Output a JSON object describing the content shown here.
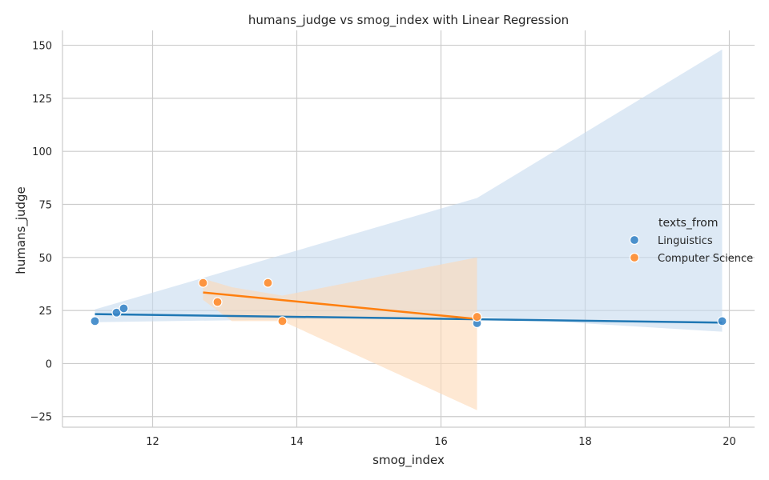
{
  "chart_data": {
    "type": "scatter",
    "title": "humans_judge vs smog_index with Linear Regression",
    "xlabel": "smog_index",
    "ylabel": "humans_judge",
    "xlim": [
      10.75,
      20.35
    ],
    "ylim": [
      -30,
      157
    ],
    "x_ticks": [
      12,
      14,
      16,
      18,
      20
    ],
    "y_ticks": [
      -25,
      0,
      25,
      50,
      75,
      100,
      125,
      150
    ],
    "grid": true,
    "legend": {
      "title": "texts_from",
      "placement": "center-right"
    },
    "series": [
      {
        "name": "Linguistics",
        "color": "#3a86c8",
        "line_color": "#1f77b4",
        "band_color": "#c6dbef",
        "points": [
          {
            "x": 11.2,
            "y": 20
          },
          {
            "x": 11.5,
            "y": 24
          },
          {
            "x": 11.6,
            "y": 26
          },
          {
            "x": 16.5,
            "y": 19
          },
          {
            "x": 19.9,
            "y": 20
          }
        ],
        "regression": {
          "x": [
            11.2,
            19.9
          ],
          "y": [
            23.3,
            19.3
          ]
        },
        "ci_band": {
          "x": [
            11.2,
            16.5,
            19.9
          ],
          "upper": [
            25.5,
            78,
            148
          ],
          "lower": [
            19.5,
            22,
            15
          ]
        }
      },
      {
        "name": "Computer Science",
        "color": "#ff8c2e",
        "line_color": "#ff7f0e",
        "band_color": "#fdd9b5",
        "points": [
          {
            "x": 12.7,
            "y": 38
          },
          {
            "x": 12.9,
            "y": 29
          },
          {
            "x": 13.6,
            "y": 38
          },
          {
            "x": 13.8,
            "y": 20
          },
          {
            "x": 16.5,
            "y": 22
          }
        ],
        "regression": {
          "x": [
            12.7,
            16.5
          ],
          "y": [
            33.5,
            21
          ]
        },
        "ci_band": {
          "x": [
            12.7,
            13.1,
            13.8,
            16.5
          ],
          "upper": [
            40,
            36,
            32,
            50
          ],
          "lower": [
            30,
            20,
            20,
            -22
          ]
        }
      }
    ]
  }
}
